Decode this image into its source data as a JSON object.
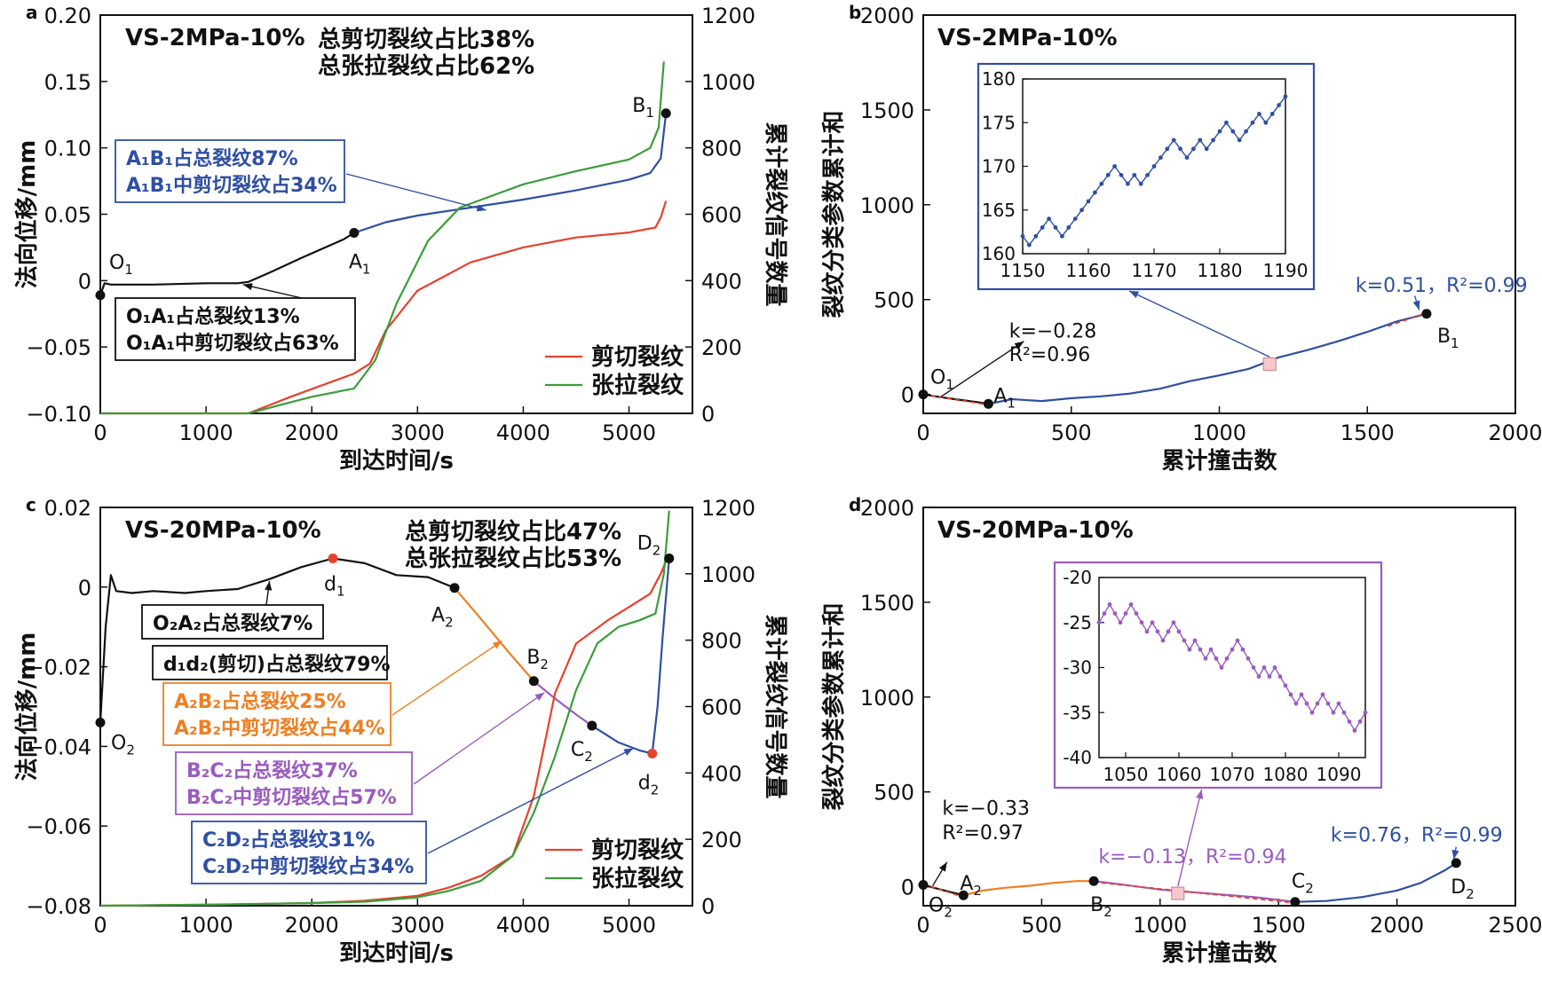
{
  "colors": {
    "black": "#111111",
    "red": "#e8412c",
    "green": "#3a9d3a",
    "blue": "#2f4fa2",
    "orange": "#ef7f22",
    "purple": "#9a5cc0"
  },
  "legend": {
    "shear": "剪切裂纹",
    "tension": "张拉裂纹"
  },
  "chart_data": [
    {
      "panel": "a",
      "type": "line",
      "label": "VS-2MPa-10%",
      "xlabel": "到达时间/s",
      "ylabel": "法向位移/mm",
      "y2label": "累计裂纹信号数量",
      "xlim": [
        0,
        5600
      ],
      "ylim": [
        -0.1,
        0.2
      ],
      "y2lim": [
        0,
        1200
      ],
      "xticks": [
        0,
        1000,
        2000,
        3000,
        4000,
        5000
      ],
      "yticks": [
        -0.1,
        -0.05,
        0,
        0.05,
        0.1,
        0.15,
        0.2
      ],
      "yticklabels": [
        "−0.10",
        "−0.05",
        "0",
        "0.05",
        "0.10",
        "0.15",
        "0.20"
      ],
      "y2ticks": [
        0,
        200,
        400,
        600,
        800,
        1000,
        1200
      ],
      "summary": [
        "总剪切裂纹占比38%",
        "总张拉裂纹占比62%"
      ],
      "points": [
        {
          "name": "O",
          "sub": "1",
          "x": 0,
          "y": -0.011
        },
        {
          "name": "A",
          "sub": "1",
          "x": 2400,
          "y": 0.036
        },
        {
          "name": "B",
          "sub": "1",
          "x": 5350,
          "y": 0.126
        }
      ],
      "series": [
        {
          "name": "displacement O1A1",
          "axis": "y",
          "color": "black",
          "x": [
            0,
            40,
            100,
            500,
            1000,
            1300,
            1400,
            1600,
            1900,
            2100,
            2300,
            2400
          ],
          "y": [
            -0.011,
            -0.002,
            -0.003,
            -0.003,
            -0.002,
            -0.002,
            -0.001,
            0.006,
            0.017,
            0.024,
            0.031,
            0.036
          ]
        },
        {
          "name": "displacement A1B1",
          "axis": "y",
          "color": "blue",
          "x": [
            2400,
            2700,
            3000,
            3500,
            4000,
            4500,
            5000,
            5200,
            5300,
            5350
          ],
          "y": [
            0.036,
            0.044,
            0.049,
            0.055,
            0.061,
            0.068,
            0.076,
            0.081,
            0.092,
            0.126
          ]
        },
        {
          "name": "剪切裂纹",
          "axis": "y2",
          "color": "red",
          "x": [
            0,
            1400,
            1600,
            1800,
            2100,
            2400,
            2550,
            2700,
            3000,
            3500,
            4000,
            4500,
            5000,
            5250,
            5300,
            5350
          ],
          "y": [
            0,
            0,
            25,
            50,
            85,
            120,
            150,
            250,
            370,
            455,
            500,
            530,
            545,
            560,
            590,
            640
          ]
        },
        {
          "name": "张拉裂纹",
          "axis": "y2",
          "color": "green",
          "x": [
            0,
            1400,
            1700,
            2000,
            2400,
            2600,
            2800,
            3100,
            3400,
            3700,
            4000,
            4500,
            5000,
            5200,
            5280,
            5330
          ],
          "y": [
            0,
            0,
            25,
            50,
            75,
            160,
            330,
            520,
            620,
            655,
            690,
            730,
            765,
            800,
            860,
            1060
          ]
        }
      ],
      "annotations": [
        {
          "lines": [
            "A₁B₁占总裂纹87%",
            "A₁B₁中剪切裂纹占34%"
          ],
          "color": "blue"
        },
        {
          "lines": [
            "O₁A₁占总裂纹13%",
            "O₁A₁中剪切裂纹占63%"
          ],
          "color": "black"
        }
      ]
    },
    {
      "panel": "b",
      "type": "line",
      "label": "VS-2MPa-10%",
      "xlabel": "累计撞击数",
      "ylabel": "裂纹分类参数累计和",
      "xlim": [
        0,
        2000
      ],
      "ylim": [
        -100,
        2000
      ],
      "xticks": [
        0,
        500,
        1000,
        1500,
        2000
      ],
      "yticks": [
        0,
        500,
        1000,
        1500,
        2000
      ],
      "points": [
        {
          "name": "O",
          "sub": "1",
          "x": 0,
          "y": 0
        },
        {
          "name": "A",
          "sub": "1",
          "x": 220,
          "y": -50
        },
        {
          "name": "B",
          "sub": "1",
          "x": 1700,
          "y": 425
        }
      ],
      "series": [
        {
          "name": "O1A1",
          "color": "black",
          "x": [
            0,
            60,
            120,
            180,
            220
          ],
          "y": [
            0,
            -15,
            -28,
            -40,
            -50
          ]
        },
        {
          "name": "A1B1",
          "color": "blue",
          "x": [
            220,
            300,
            400,
            500,
            600,
            700,
            800,
            900,
            1000,
            1100,
            1150,
            1200,
            1300,
            1400,
            1500,
            1600,
            1700
          ],
          "y": [
            -50,
            -25,
            -35,
            -20,
            -10,
            5,
            30,
            70,
            100,
            135,
            165,
            195,
            235,
            280,
            330,
            385,
            425
          ]
        }
      ],
      "fits": [
        {
          "k": "−0.28",
          "r2": "0.96",
          "x": [
            0,
            220
          ],
          "y": [
            0,
            -55
          ]
        },
        {
          "k": "0.51",
          "r2": "0.99",
          "x": [
            1570,
            1700
          ],
          "y": [
            360,
            430
          ]
        }
      ],
      "inset": {
        "xlim": [
          1150,
          1190
        ],
        "ylim": [
          160,
          180
        ],
        "xticks": [
          1150,
          1160,
          1170,
          1180,
          1190
        ],
        "yticks": [
          160,
          165,
          170,
          175,
          180
        ],
        "x": [
          1150,
          1151,
          1152,
          1153,
          1154,
          1155,
          1156,
          1157,
          1158,
          1159,
          1160,
          1161,
          1162,
          1163,
          1164,
          1165,
          1166,
          1167,
          1168,
          1169,
          1170,
          1171,
          1172,
          1173,
          1174,
          1175,
          1176,
          1177,
          1178,
          1179,
          1180,
          1181,
          1182,
          1183,
          1184,
          1185,
          1186,
          1187,
          1188,
          1189,
          1190
        ],
        "y": [
          162,
          161,
          162,
          163,
          164,
          163,
          162,
          163,
          164,
          165,
          166,
          167,
          168,
          169,
          170,
          169,
          168,
          169,
          168,
          169,
          170,
          171,
          172,
          173,
          172,
          171,
          172,
          173,
          172,
          173,
          174,
          175,
          174,
          173,
          174,
          175,
          176,
          175,
          176,
          177,
          178
        ]
      }
    },
    {
      "panel": "c",
      "type": "line",
      "label": "VS-20MPa-10%",
      "xlabel": "到达时间/s",
      "ylabel": "法向位移/mm",
      "y2label": "累计裂纹信号数量",
      "xlim": [
        0,
        5600
      ],
      "ylim": [
        -0.08,
        0.02
      ],
      "y2lim": [
        0,
        1200
      ],
      "xticks": [
        0,
        1000,
        2000,
        3000,
        4000,
        5000
      ],
      "yticks": [
        -0.08,
        -0.06,
        -0.04,
        -0.02,
        0,
        0.02
      ],
      "yticklabels": [
        "−0.08",
        "−0.06",
        "−0.04",
        "−0.02",
        "0",
        "0.02"
      ],
      "y2ticks": [
        0,
        200,
        400,
        600,
        800,
        1000,
        1200
      ],
      "summary": [
        "总剪切裂纹占比47%",
        "总张拉裂纹占比53%"
      ],
      "points": [
        {
          "name": "O",
          "sub": "2",
          "x": 0,
          "y": -0.034,
          "color": "black"
        },
        {
          "name": "d",
          "sub": "1",
          "x": 2200,
          "y": 0.0072,
          "color": "red"
        },
        {
          "name": "A",
          "sub": "2",
          "x": 3350,
          "y": -0.0002,
          "color": "black"
        },
        {
          "name": "B",
          "sub": "2",
          "x": 4100,
          "y": -0.0236,
          "color": "black"
        },
        {
          "name": "C",
          "sub": "2",
          "x": 4650,
          "y": -0.0348,
          "color": "black"
        },
        {
          "name": "d",
          "sub": "2",
          "x": 5220,
          "y": -0.0418,
          "color": "red"
        },
        {
          "name": "D",
          "sub": "2",
          "x": 5380,
          "y": 0.0072,
          "color": "black"
        }
      ],
      "series": [
        {
          "name": "displacement O2A2",
          "axis": "y",
          "color": "black",
          "x": [
            0,
            50,
            100,
            150,
            300,
            500,
            800,
            1000,
            1300,
            1600,
            1900,
            2200,
            2500,
            2800,
            3100,
            3350
          ],
          "y": [
            -0.034,
            -0.01,
            0.003,
            -0.001,
            -0.0015,
            -0.001,
            -0.0015,
            -0.001,
            -0.0005,
            0.002,
            0.005,
            0.0072,
            0.006,
            0.003,
            0.0025,
            -0.0002
          ]
        },
        {
          "name": "displacement A2B2",
          "axis": "y",
          "color": "orange",
          "x": [
            3350,
            3600,
            3850,
            4100
          ],
          "y": [
            -0.0002,
            -0.008,
            -0.016,
            -0.0236
          ]
        },
        {
          "name": "displacement B2C2",
          "axis": "y",
          "color": "purple",
          "x": [
            4100,
            4300,
            4500,
            4650
          ],
          "y": [
            -0.0236,
            -0.028,
            -0.032,
            -0.0348
          ]
        },
        {
          "name": "displacement C2D2",
          "axis": "y",
          "color": "blue",
          "x": [
            4650,
            4900,
            5100,
            5220,
            5270,
            5320,
            5380
          ],
          "y": [
            -0.0348,
            -0.039,
            -0.041,
            -0.0418,
            -0.03,
            -0.012,
            0.0072
          ]
        },
        {
          "name": "剪切裂纹",
          "axis": "y2",
          "color": "red",
          "x": [
            0,
            1000,
            2000,
            2500,
            3000,
            3300,
            3600,
            3900,
            4100,
            4300,
            4500,
            4800,
            5000,
            5200,
            5300,
            5380
          ],
          "y": [
            0,
            3,
            8,
            15,
            30,
            55,
            90,
            150,
            330,
            640,
            790,
            860,
            900,
            940,
            1000,
            1060
          ]
        },
        {
          "name": "张拉裂纹",
          "axis": "y2",
          "color": "green",
          "x": [
            0,
            1000,
            2000,
            2500,
            3000,
            3300,
            3600,
            3900,
            4100,
            4300,
            4500,
            4700,
            4900,
            5100,
            5250,
            5330,
            5380
          ],
          "y": [
            0,
            3,
            8,
            12,
            25,
            45,
            75,
            150,
            280,
            450,
            650,
            790,
            840,
            860,
            880,
            1000,
            1190
          ]
        }
      ],
      "annotations": [
        {
          "lines": [
            "O₂A₂占总裂纹7%"
          ],
          "color": "black"
        },
        {
          "lines": [
            "d₁d₂(剪切)占总裂纹79%"
          ],
          "color": "black"
        },
        {
          "lines": [
            "A₂B₂占总裂纹25%",
            "A₂B₂中剪切裂纹占44%"
          ],
          "color": "orange"
        },
        {
          "lines": [
            "B₂C₂占总裂纹37%",
            "B₂C₂中剪切裂纹占57%"
          ],
          "color": "purple"
        },
        {
          "lines": [
            "C₂D₂占总裂纹31%",
            "C₂D₂中剪切裂纹占34%"
          ],
          "color": "blue"
        }
      ]
    },
    {
      "panel": "d",
      "type": "line",
      "label": "VS-20MPa-10%",
      "xlabel": "累计撞击数",
      "ylabel": "裂纹分类参数累计和",
      "xlim": [
        0,
        2500
      ],
      "ylim": [
        -100,
        2000
      ],
      "xticks": [
        0,
        500,
        1000,
        1500,
        2000,
        2500
      ],
      "yticks": [
        0,
        500,
        1000,
        1500,
        2000
      ],
      "points": [
        {
          "name": "O",
          "sub": "2",
          "x": 0,
          "y": 10
        },
        {
          "name": "A",
          "sub": "2",
          "x": 170,
          "y": -45
        },
        {
          "name": "B",
          "sub": "2",
          "x": 720,
          "y": 30
        },
        {
          "name": "C",
          "sub": "2",
          "x": 1570,
          "y": -80
        },
        {
          "name": "D",
          "sub": "2",
          "x": 2250,
          "y": 125
        }
      ],
      "series": [
        {
          "name": "O2A2",
          "color": "black",
          "x": [
            0,
            60,
            120,
            170
          ],
          "y": [
            10,
            -10,
            -30,
            -45
          ]
        },
        {
          "name": "A2B2",
          "color": "orange",
          "x": [
            170,
            250,
            350,
            450,
            550,
            650,
            720
          ],
          "y": [
            -45,
            -20,
            -5,
            5,
            20,
            30,
            30
          ]
        },
        {
          "name": "B2C2",
          "color": "purple",
          "x": [
            720,
            850,
            1000,
            1100,
            1250,
            1400,
            1570
          ],
          "y": [
            30,
            10,
            -15,
            -25,
            -40,
            -55,
            -80
          ]
        },
        {
          "name": "C2D2",
          "color": "blue",
          "x": [
            1570,
            1700,
            1850,
            2000,
            2100,
            2200,
            2250
          ],
          "y": [
            -80,
            -75,
            -55,
            -20,
            20,
            85,
            125
          ]
        }
      ],
      "fits": [
        {
          "k": "−0.33",
          "r2": "0.97",
          "x": [
            0,
            170
          ],
          "y": [
            15,
            -55
          ]
        },
        {
          "k": "−0.13",
          "r2": "0.94",
          "x": [
            720,
            1570
          ],
          "y": [
            25,
            -85
          ]
        },
        {
          "k": "0.76",
          "r2": "0.99"
        }
      ],
      "inset": {
        "xlim": [
          1045,
          1095
        ],
        "ylim": [
          -40,
          -20
        ],
        "xticks": [
          1050,
          1060,
          1070,
          1080,
          1090
        ],
        "yticks": [
          -20,
          -25,
          -30,
          -35,
          -40
        ],
        "yticklabels": [
          "-20",
          "-25",
          "-30",
          "-35",
          "-40"
        ],
        "x": [
          1045,
          1046,
          1047,
          1048,
          1049,
          1050,
          1051,
          1052,
          1053,
          1054,
          1055,
          1056,
          1057,
          1058,
          1059,
          1060,
          1061,
          1062,
          1063,
          1064,
          1065,
          1066,
          1067,
          1068,
          1069,
          1070,
          1071,
          1072,
          1073,
          1074,
          1075,
          1076,
          1077,
          1078,
          1079,
          1080,
          1081,
          1082,
          1083,
          1084,
          1085,
          1086,
          1087,
          1088,
          1089,
          1090,
          1091,
          1092,
          1093,
          1094,
          1095
        ],
        "y": [
          -25,
          -24,
          -23,
          -24,
          -25,
          -24,
          -23,
          -24,
          -25,
          -26,
          -25,
          -26,
          -27,
          -26,
          -25,
          -26,
          -27,
          -28,
          -27,
          -28,
          -29,
          -28,
          -29,
          -30,
          -29,
          -28,
          -27,
          -28,
          -29,
          -30,
          -31,
          -30,
          -31,
          -30,
          -31,
          -32,
          -33,
          -34,
          -33,
          -34,
          -35,
          -34,
          -33,
          -34,
          -35,
          -34,
          -35,
          -36,
          -37,
          -36,
          -35
        ]
      }
    }
  ]
}
